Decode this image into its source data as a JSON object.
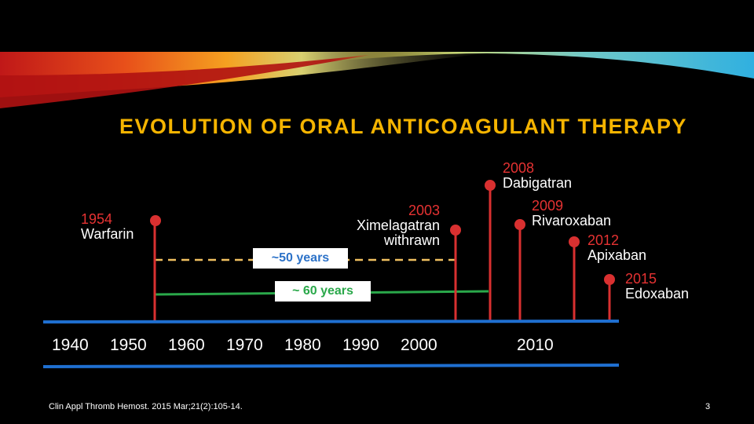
{
  "slide": {
    "title": "EVOLUTION OF ORAL ANTICOAGULANT THERAPY",
    "citation": "Clin Appl Thromb Hemost. 2015 Mar;21(2):105-14.",
    "page_number": "3"
  },
  "colors": {
    "title": "#f5b400",
    "year_text": "#e53232",
    "stem": "#d93030",
    "axis": "#1f6fd0",
    "span_50": "#f0c060",
    "span_60": "#2aa84a",
    "span_50_text": "#2c72c8",
    "span_60_text": "#2aa84a"
  },
  "timeline": {
    "axis_ticks": [
      "1940",
      "1950",
      "1960",
      "1970",
      "1980",
      "1990",
      "2000",
      "2010"
    ],
    "events": [
      {
        "year": "1954",
        "name": "Warfarin"
      },
      {
        "year": "2003",
        "name_lines": [
          "Ximelagatran",
          "withrawn"
        ]
      },
      {
        "year": "2008",
        "name": "Dabigatran"
      },
      {
        "year": "2009",
        "name": "Rivaroxaban"
      },
      {
        "year": "2012",
        "name": "Apixaban"
      },
      {
        "year": "2015",
        "name": "Edoxaban"
      }
    ],
    "spans": [
      {
        "label": "~50 years",
        "style": "dashed"
      },
      {
        "label": "~ 60 years",
        "style": "solid"
      }
    ]
  }
}
